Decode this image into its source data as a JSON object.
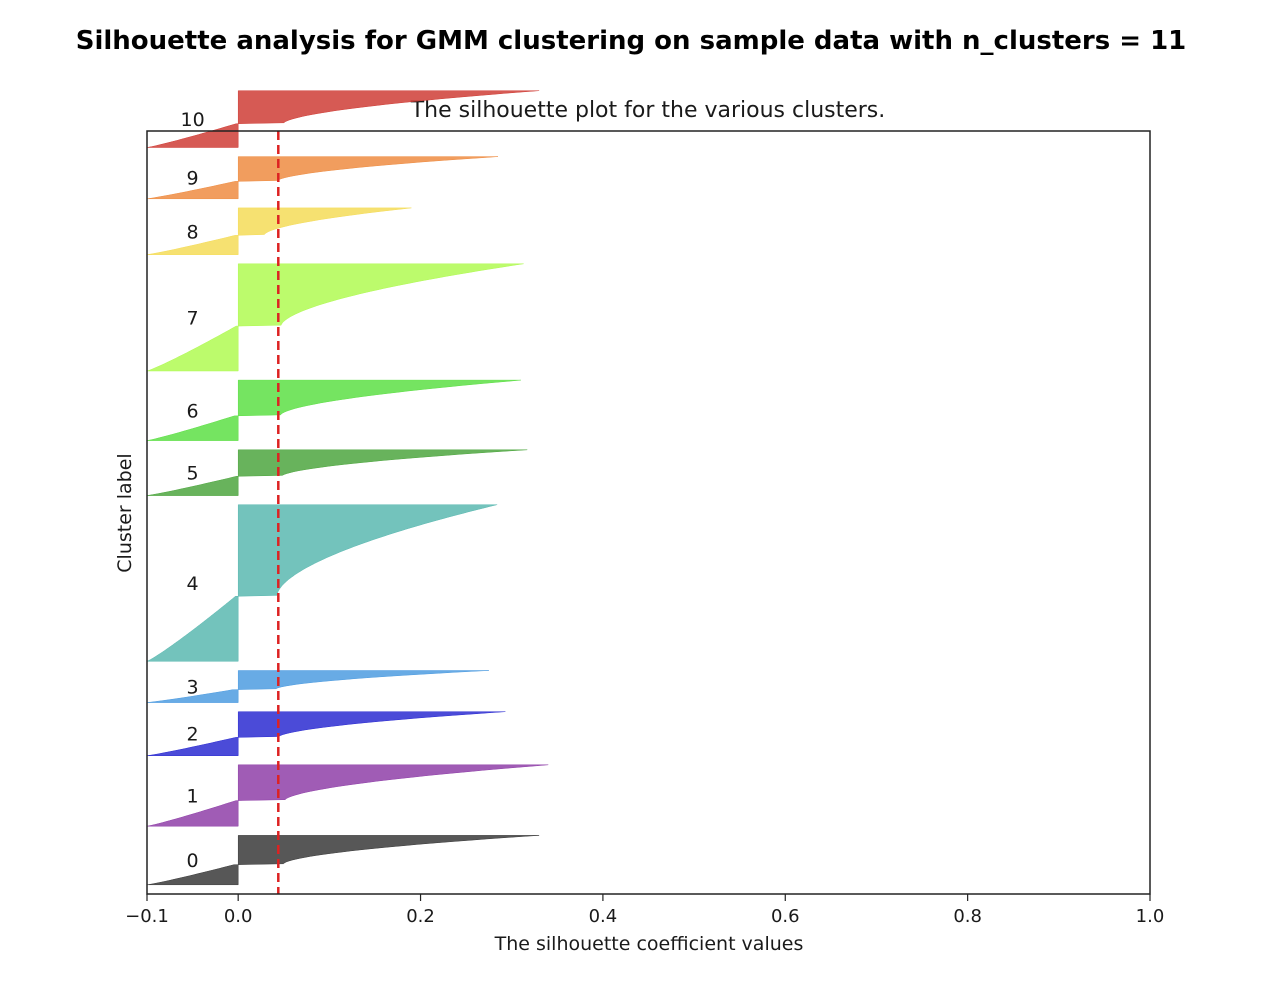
{
  "suptitle": "Silhouette analysis for GMM clustering on sample data with n_clusters = 11",
  "chart_data": {
    "type": "area",
    "title": "The silhouette plot for the various clusters.",
    "xlabel": "The silhouette coefficient values",
    "ylabel": "Cluster label",
    "xlim": [
      -0.1,
      1.0
    ],
    "ylim": [
      0,
      833
    ],
    "xticks": [
      -0.1,
      0.0,
      0.2,
      0.4,
      0.6,
      0.8,
      1.0
    ],
    "xtick_labels": [
      "−0.1",
      "0.0",
      "0.2",
      "0.4",
      "0.6",
      "0.8",
      "1.0"
    ],
    "average_silhouette": 0.044,
    "colors": {
      "average_line": "#dd2222",
      "axes": "#222222"
    },
    "clusters": [
      {
        "label": "0",
        "size": 54,
        "min": -0.1,
        "max": 0.33,
        "start": 10,
        "color": "#3a3a3a"
      },
      {
        "label": "1",
        "size": 67,
        "min": -0.1,
        "max": 0.34,
        "start": 74,
        "color": "#8f3fa8"
      },
      {
        "label": "2",
        "size": 48,
        "min": -0.1,
        "max": 0.293,
        "start": 151,
        "color": "#2b2bd1"
      },
      {
        "label": "3",
        "size": 35,
        "min": -0.1,
        "max": 0.275,
        "start": 209,
        "color": "#4e9ce0"
      },
      {
        "label": "4",
        "size": 171,
        "min": -0.1,
        "max": 0.284,
        "start": 254,
        "color": "#5ab8b0"
      },
      {
        "label": "5",
        "size": 50,
        "min": -0.1,
        "max": 0.317,
        "start": 435,
        "color": "#4ea63f"
      },
      {
        "label": "6",
        "size": 66,
        "min": -0.1,
        "max": 0.31,
        "start": 495,
        "color": "#5ddf45"
      },
      {
        "label": "7",
        "size": 117,
        "min": -0.1,
        "max": 0.313,
        "start": 571,
        "color": "#b0fa52"
      },
      {
        "label": "8",
        "size": 51,
        "min": -0.1,
        "max": 0.19,
        "start": 698,
        "color": "#f4dc58"
      },
      {
        "label": "9",
        "size": 46,
        "min": -0.1,
        "max": 0.285,
        "start": 759,
        "color": "#ee8c42"
      },
      {
        "label": "10",
        "size": 62,
        "min": -0.1,
        "max": 0.33,
        "start": 815,
        "color": "#cf3d36"
      }
    ]
  }
}
